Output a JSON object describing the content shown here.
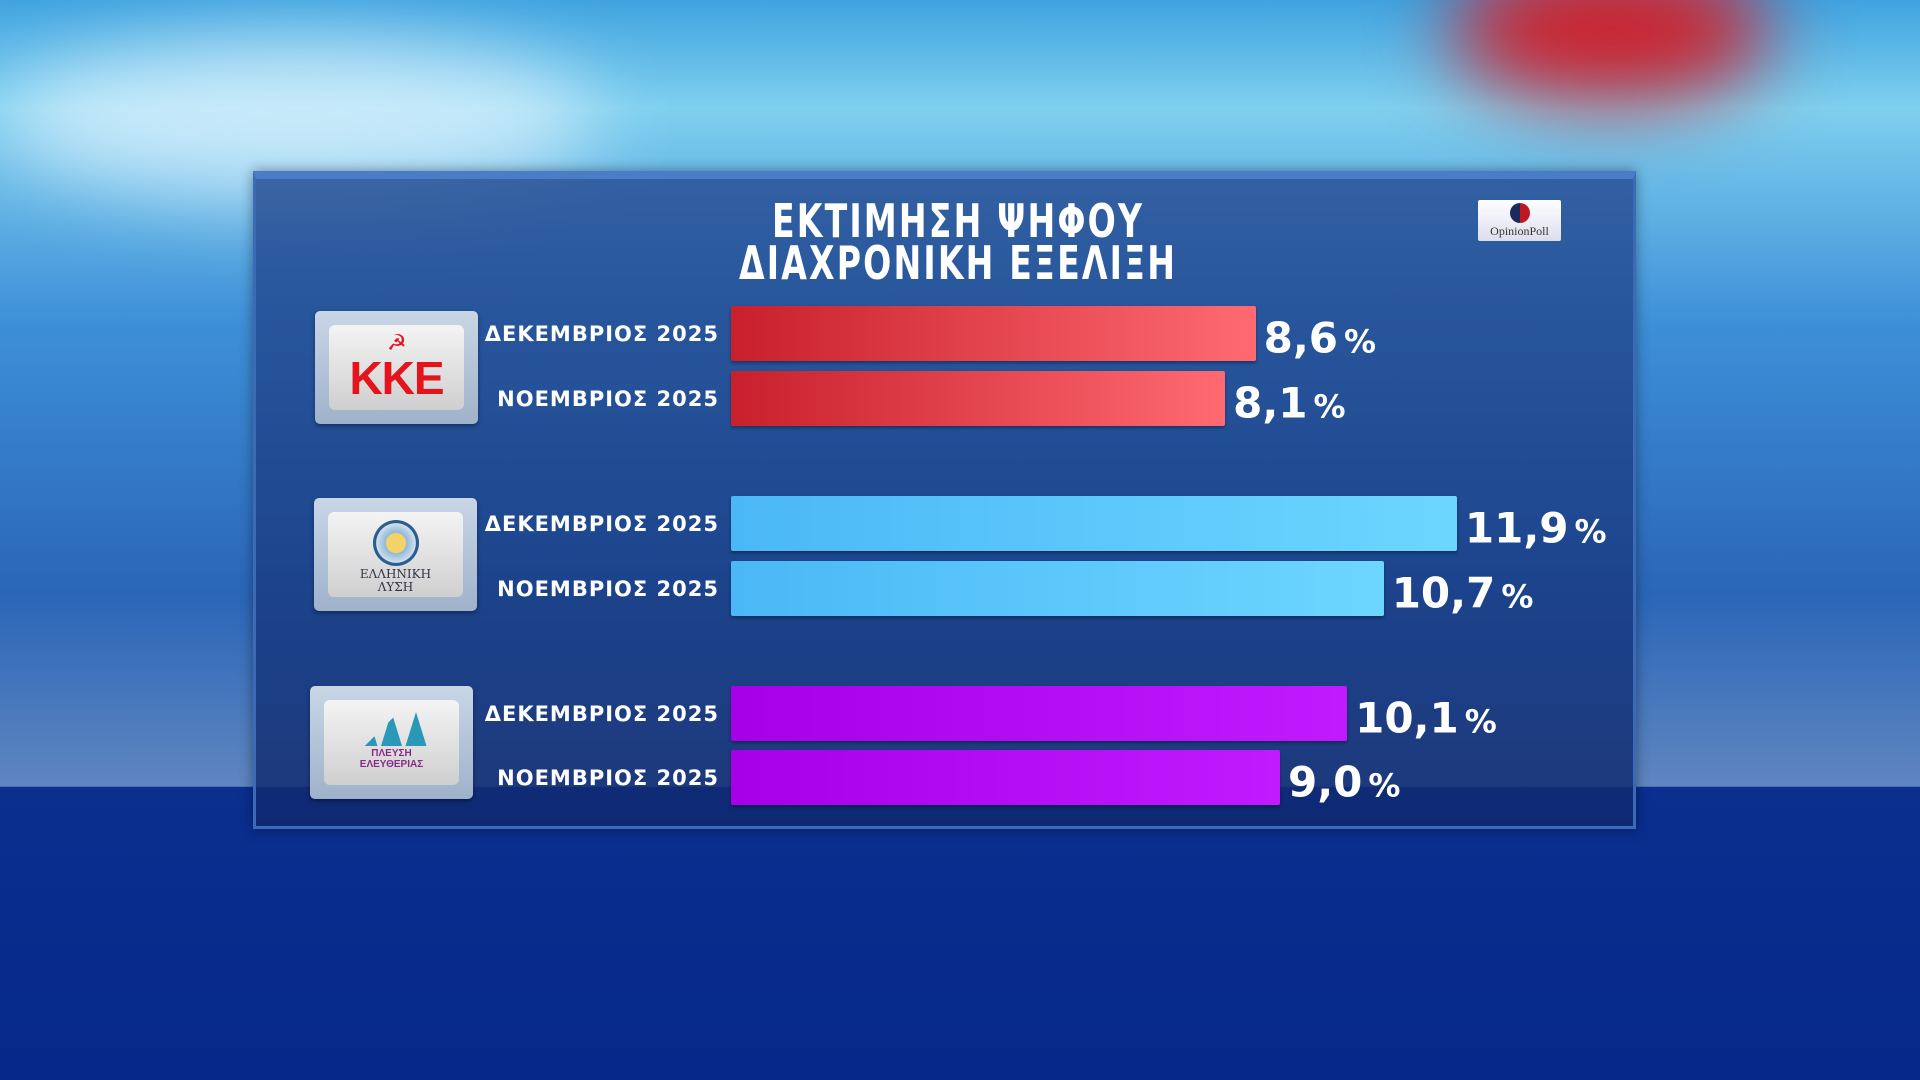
{
  "title_line1": "ΕΚΤΙΜΗΣΗ ΨΗΦΟΥ",
  "title_line2": "ΔΙΑΧΡΟΝΙΚΗ ΕΞΕΛΙΞΗ",
  "pollster_logo": "OpinionPoll",
  "parties": [
    {
      "logo_text": "ΚΚΕ"
    },
    {
      "logo_text": "ΕΛΛΗΝΙΚΗ ΛΥΣΗ"
    },
    {
      "logo_text": "ΠΛΕΥΣΗ ΕΛΕΥΘΕΡΙΑΣ"
    }
  ],
  "chart_data": {
    "type": "bar",
    "orientation": "horizontal",
    "title": "ΕΚΤΙΜΗΣΗ ΨΗΦΟΥ ΔΙΑΧΡΟΝΙΚΗ ΕΞΕΛΙΞΗ",
    "unit": "%",
    "groups": [
      {
        "party": "ΚΚΕ",
        "color": "#e8404a",
        "bars": [
          {
            "label": "ΔΕΚΕΜΒΡΙΟΣ 2025",
            "value": 8.6,
            "value_label": "8,6"
          },
          {
            "label": "ΝΟΕΜΒΡΙΟΣ 2025",
            "value": 8.1,
            "value_label": "8,1"
          }
        ]
      },
      {
        "party": "ΕΛΛΗΝΙΚΗ ΛΥΣΗ",
        "color": "#5cc8fb",
        "bars": [
          {
            "label": "ΔΕΚΕΜΒΡΙΟΣ 2025",
            "value": 11.9,
            "value_label": "11,9"
          },
          {
            "label": "ΝΟΕΜΒΡΙΟΣ 2025",
            "value": 10.7,
            "value_label": "10,7"
          }
        ]
      },
      {
        "party": "ΠΛΕΥΣΗ ΕΛΕΥΘΕΡΙΑΣ",
        "color": "#b810f5",
        "bars": [
          {
            "label": "ΔΕΚΕΜΒΡΙΟΣ 2025",
            "value": 10.1,
            "value_label": "10,1"
          },
          {
            "label": "ΝΟΕΜΒΡΙΟΣ 2025",
            "value": 9.0,
            "value_label": "9,0"
          }
        ]
      }
    ]
  }
}
